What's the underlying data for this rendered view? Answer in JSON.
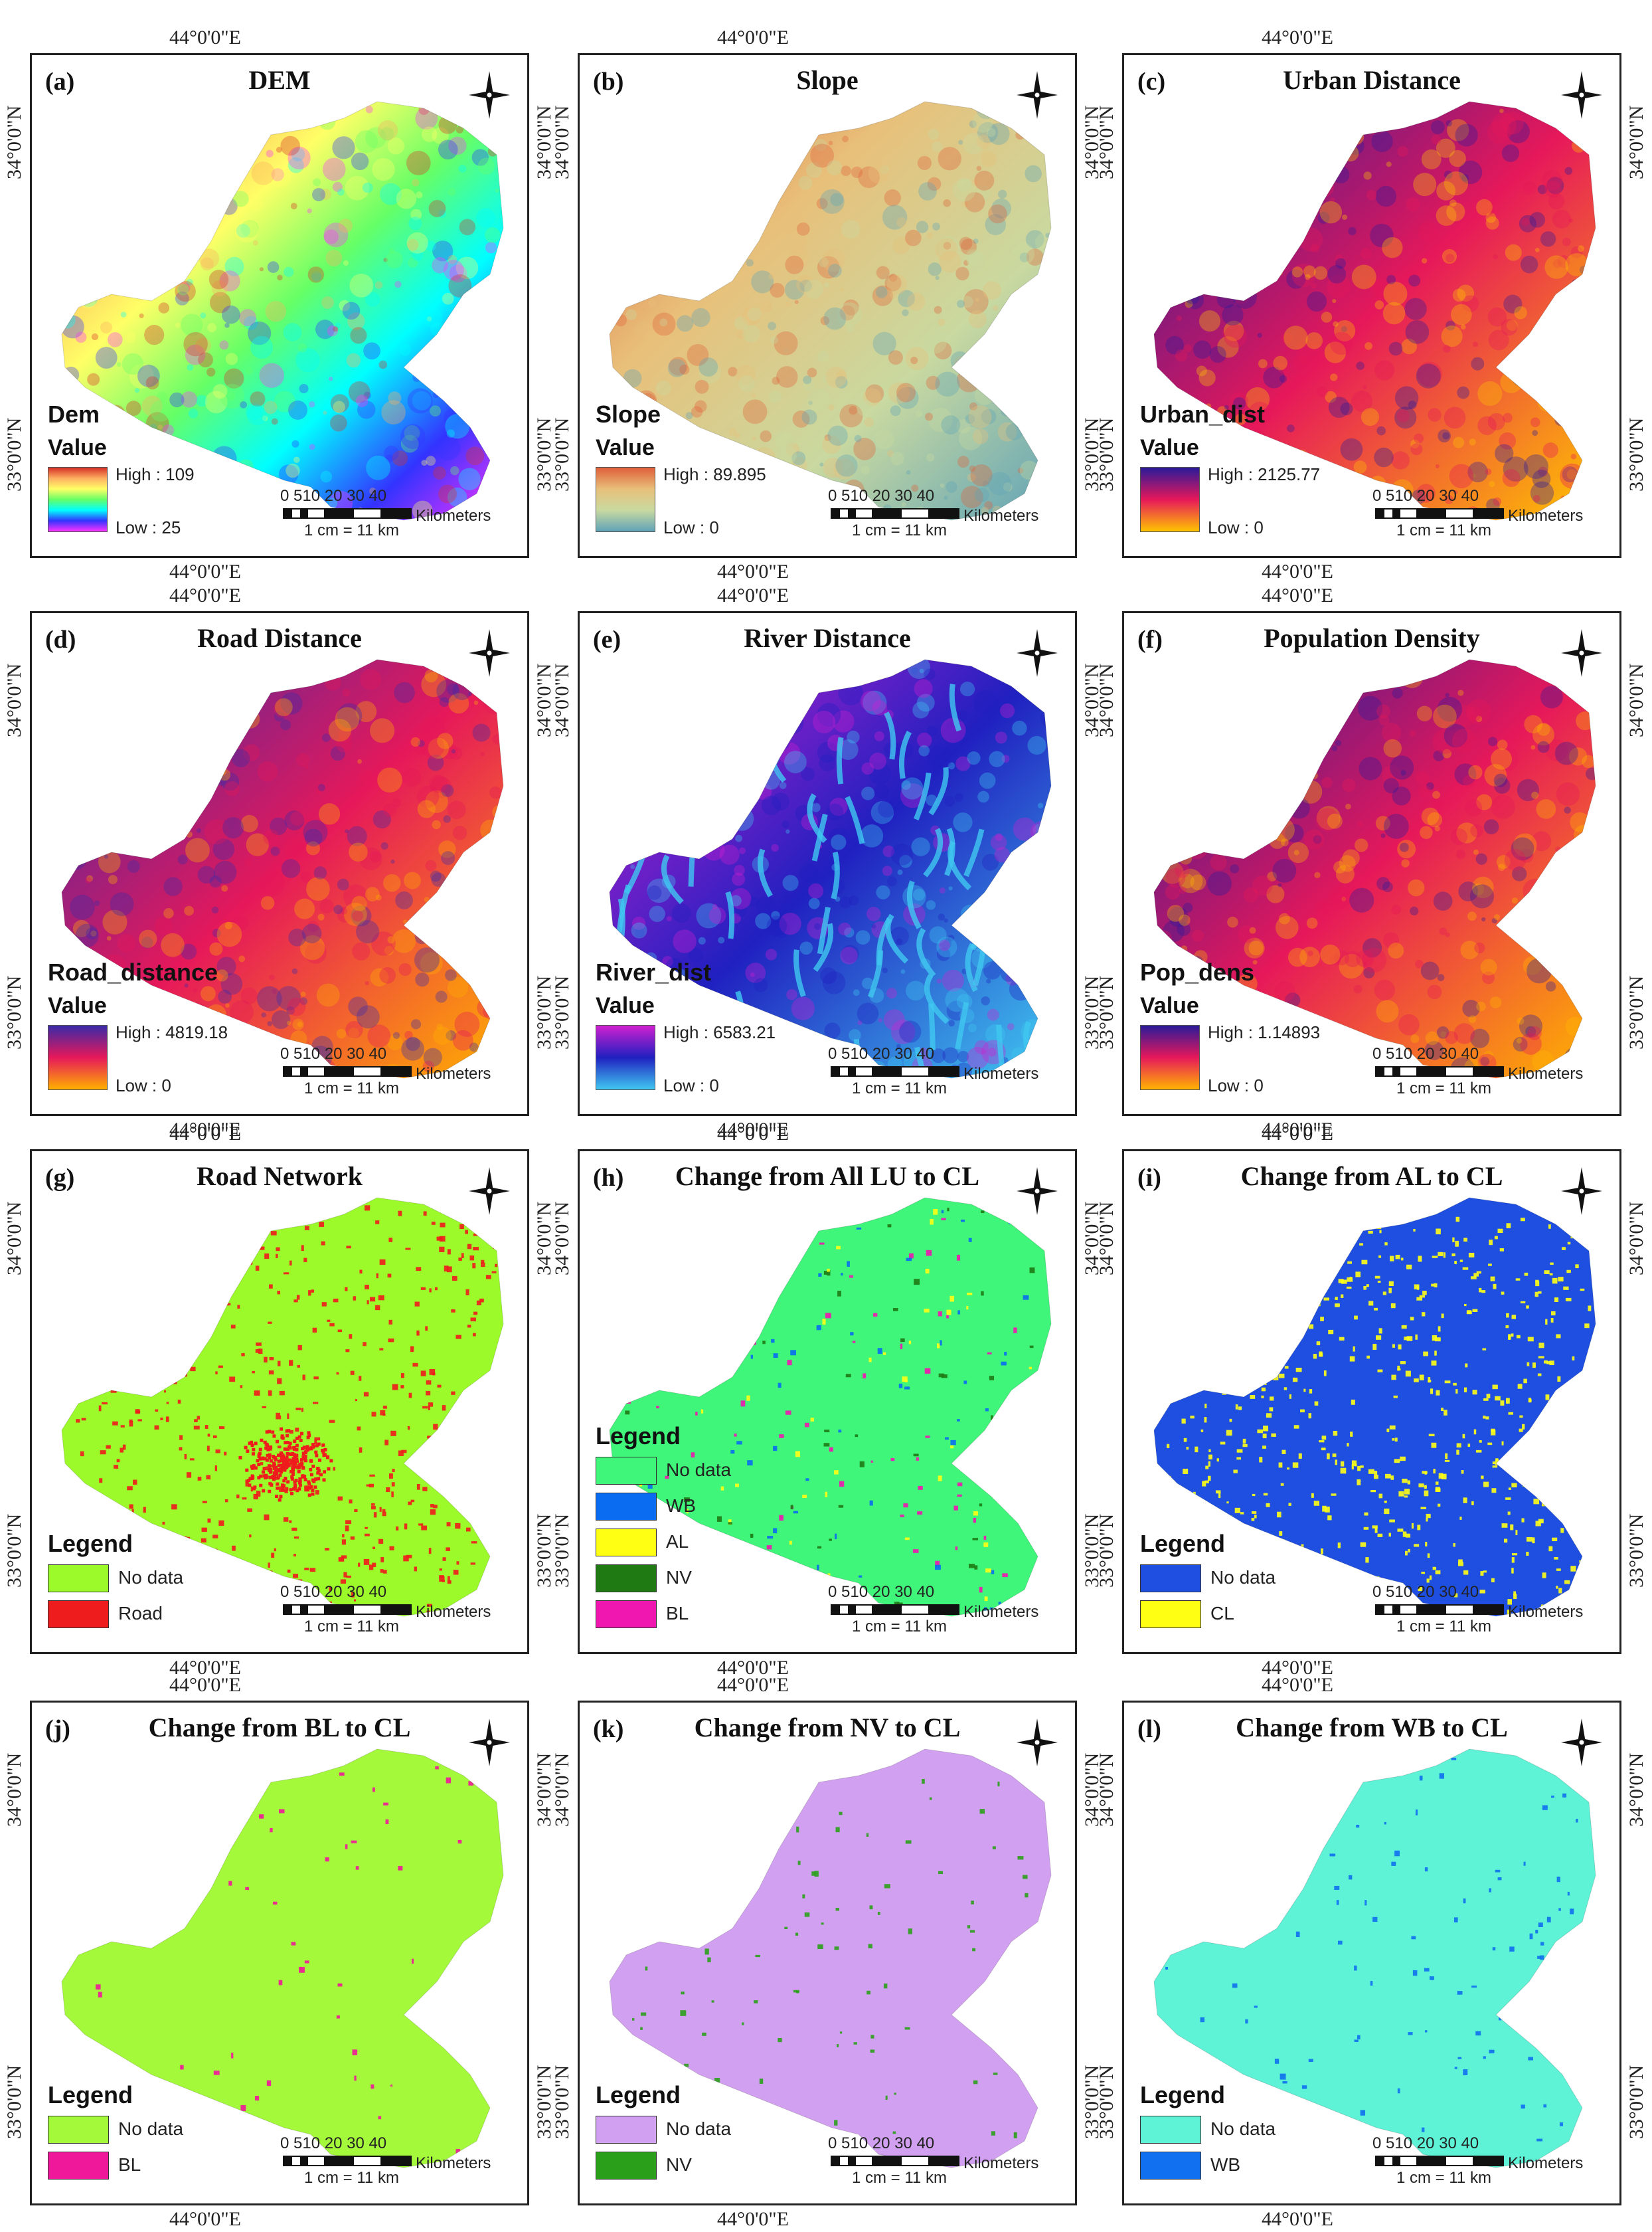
{
  "coords": {
    "lon": "44°0'0\"E",
    "lat_top": "34°0'0\"N",
    "lat_bottom": "33°0'0\"N"
  },
  "scalebar": {
    "numbers": "0 510  20  30  40",
    "unit": "Kilometers",
    "ratio": "1 cm = 11 km"
  },
  "panels": [
    {
      "letter": "(a)",
      "title": "DEM",
      "legend_title": "Dem",
      "value_title": "Value",
      "high": "High : 109",
      "low": "Low : 25",
      "colors": {
        "ramp": [
          "#d73027",
          "#fdae61",
          "#ffff66",
          "#66ff66",
          "#00ffff",
          "#3333ff",
          "#ff33ff"
        ]
      }
    },
    {
      "letter": "(b)",
      "title": "Slope",
      "legend_title": "Slope",
      "value_title": "Value",
      "high": "High : 89.895",
      "low": "Low : 0",
      "colors": {
        "ramp": [
          "#e0603a",
          "#e8c07a",
          "#c9d9a0",
          "#5fa3b8"
        ]
      }
    },
    {
      "letter": "(c)",
      "title": "Urban Distance",
      "legend_title": "Urban_dist",
      "value_title": "Value",
      "high": "High : 2125.77",
      "low": "Low : 0",
      "colors": {
        "ramp": [
          "#2a1a9a",
          "#e6185a",
          "#ffc400"
        ]
      }
    },
    {
      "letter": "(d)",
      "title": "Road Distance",
      "legend_title": "Road_distance",
      "value_title": "Value",
      "high": "High : 4819.18",
      "low": "Low : 0",
      "colors": {
        "ramp": [
          "#3a2aa8",
          "#e6185a",
          "#ffb000"
        ]
      }
    },
    {
      "letter": "(e)",
      "title": "River Distance",
      "legend_title": "River_dist",
      "value_title": "Value",
      "high": "High : 6583.21",
      "low": "Low : 0",
      "colors": {
        "ramp": [
          "#d020d0",
          "#2020c0",
          "#40c8f0"
        ]
      }
    },
    {
      "letter": "(f)",
      "title": "Population Density",
      "legend_title": "Pop_dens",
      "value_title": "Value",
      "high": "High : 1.14893",
      "low": "Low : 0",
      "colors": {
        "ramp": [
          "#2a1a9a",
          "#e6185a",
          "#ffb400"
        ]
      }
    },
    {
      "letter": "(g)",
      "title": "Road Network",
      "legend_title": "Legend",
      "items": [
        {
          "label": "No data",
          "color": "#9cfa2a"
        },
        {
          "label": "Road",
          "color": "#ee1c1c"
        }
      ]
    },
    {
      "letter": "(h)",
      "title": "Change from All LU to CL",
      "legend_title": "Legend",
      "items": [
        {
          "label": "No data",
          "color": "#3ff57a"
        },
        {
          "label": "WB",
          "color": "#0a6cf0"
        },
        {
          "label": "AL",
          "color": "#ffff14"
        },
        {
          "label": "NV",
          "color": "#1f7a14"
        },
        {
          "label": "BL",
          "color": "#f017b0"
        }
      ]
    },
    {
      "letter": "(i)",
      "title": "Change from AL to CL",
      "legend_title": "Legend",
      "items": [
        {
          "label": "No data",
          "color": "#1f4fe0"
        },
        {
          "label": "CL",
          "color": "#ffff14"
        }
      ]
    },
    {
      "letter": "(j)",
      "title": "Change from BL to CL",
      "legend_title": "Legend",
      "items": [
        {
          "label": "No data",
          "color": "#a4fa3a"
        },
        {
          "label": "BL",
          "color": "#f0189a"
        }
      ]
    },
    {
      "letter": "(k)",
      "title": "Change from NV to CL",
      "legend_title": "Legend",
      "items": [
        {
          "label": "No data",
          "color": "#d2a0f0"
        },
        {
          "label": "NV",
          "color": "#2aa01a"
        }
      ]
    },
    {
      "letter": "(l)",
      "title": "Change from WB to CL",
      "legend_title": "Legend",
      "items": [
        {
          "label": "No data",
          "color": "#5ef2d6"
        },
        {
          "label": "WB",
          "color": "#1070f0"
        }
      ]
    }
  ]
}
